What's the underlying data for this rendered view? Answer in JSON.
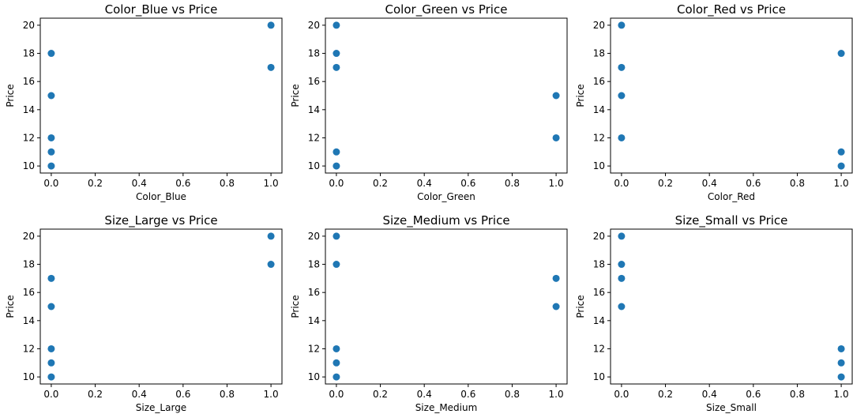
{
  "chart_data": [
    {
      "type": "scatter",
      "title": "Color_Blue vs Price",
      "xlabel": "Color_Blue",
      "ylabel": "Price",
      "xlim": [
        -0.05,
        1.05
      ],
      "ylim": [
        9.5,
        20.5
      ],
      "xticks": [
        "0.0",
        "0.2",
        "0.4",
        "0.6",
        "0.8",
        "1.0"
      ],
      "yticks": [
        "10",
        "12",
        "14",
        "16",
        "18",
        "20"
      ],
      "points": [
        {
          "x": 0,
          "y": 18
        },
        {
          "x": 0,
          "y": 15
        },
        {
          "x": 0,
          "y": 12
        },
        {
          "x": 0,
          "y": 11
        },
        {
          "x": 0,
          "y": 10
        },
        {
          "x": 1,
          "y": 20
        },
        {
          "x": 1,
          "y": 17
        }
      ],
      "color": "#1f77b4"
    },
    {
      "type": "scatter",
      "title": "Color_Green vs Price",
      "xlabel": "Color_Green",
      "ylabel": "Price",
      "xlim": [
        -0.05,
        1.05
      ],
      "ylim": [
        9.5,
        20.5
      ],
      "xticks": [
        "0.0",
        "0.2",
        "0.4",
        "0.6",
        "0.8",
        "1.0"
      ],
      "yticks": [
        "10",
        "12",
        "14",
        "16",
        "18",
        "20"
      ],
      "points": [
        {
          "x": 0,
          "y": 20
        },
        {
          "x": 0,
          "y": 18
        },
        {
          "x": 0,
          "y": 17
        },
        {
          "x": 0,
          "y": 11
        },
        {
          "x": 0,
          "y": 10
        },
        {
          "x": 1,
          "y": 15
        },
        {
          "x": 1,
          "y": 12
        }
      ],
      "color": "#1f77b4"
    },
    {
      "type": "scatter",
      "title": "Color_Red vs Price",
      "xlabel": "Color_Red",
      "ylabel": "Price",
      "xlim": [
        -0.05,
        1.05
      ],
      "ylim": [
        9.5,
        20.5
      ],
      "xticks": [
        "0.0",
        "0.2",
        "0.4",
        "0.6",
        "0.8",
        "1.0"
      ],
      "yticks": [
        "10",
        "12",
        "14",
        "16",
        "18",
        "20"
      ],
      "points": [
        {
          "x": 0,
          "y": 20
        },
        {
          "x": 0,
          "y": 17
        },
        {
          "x": 0,
          "y": 15
        },
        {
          "x": 0,
          "y": 12
        },
        {
          "x": 1,
          "y": 18
        },
        {
          "x": 1,
          "y": 11
        },
        {
          "x": 1,
          "y": 10
        }
      ],
      "color": "#1f77b4"
    },
    {
      "type": "scatter",
      "title": "Size_Large vs Price",
      "xlabel": "Size_Large",
      "ylabel": "Price",
      "xlim": [
        -0.05,
        1.05
      ],
      "ylim": [
        9.5,
        20.5
      ],
      "xticks": [
        "0.0",
        "0.2",
        "0.4",
        "0.6",
        "0.8",
        "1.0"
      ],
      "yticks": [
        "10",
        "12",
        "14",
        "16",
        "18",
        "20"
      ],
      "points": [
        {
          "x": 0,
          "y": 17
        },
        {
          "x": 0,
          "y": 15
        },
        {
          "x": 0,
          "y": 12
        },
        {
          "x": 0,
          "y": 11
        },
        {
          "x": 0,
          "y": 10
        },
        {
          "x": 1,
          "y": 20
        },
        {
          "x": 1,
          "y": 18
        }
      ],
      "color": "#1f77b4"
    },
    {
      "type": "scatter",
      "title": "Size_Medium vs Price",
      "xlabel": "Size_Medium",
      "ylabel": "Price",
      "xlim": [
        -0.05,
        1.05
      ],
      "ylim": [
        9.5,
        20.5
      ],
      "xticks": [
        "0.0",
        "0.2",
        "0.4",
        "0.6",
        "0.8",
        "1.0"
      ],
      "yticks": [
        "10",
        "12",
        "14",
        "16",
        "18",
        "20"
      ],
      "points": [
        {
          "x": 0,
          "y": 20
        },
        {
          "x": 0,
          "y": 18
        },
        {
          "x": 0,
          "y": 12
        },
        {
          "x": 0,
          "y": 11
        },
        {
          "x": 0,
          "y": 10
        },
        {
          "x": 1,
          "y": 17
        },
        {
          "x": 1,
          "y": 15
        }
      ],
      "color": "#1f77b4"
    },
    {
      "type": "scatter",
      "title": "Size_Small vs Price",
      "xlabel": "Size_Small",
      "ylabel": "Price",
      "xlim": [
        -0.05,
        1.05
      ],
      "ylim": [
        9.5,
        20.5
      ],
      "xticks": [
        "0.0",
        "0.2",
        "0.4",
        "0.6",
        "0.8",
        "1.0"
      ],
      "yticks": [
        "10",
        "12",
        "14",
        "16",
        "18",
        "20"
      ],
      "points": [
        {
          "x": 0,
          "y": 20
        },
        {
          "x": 0,
          "y": 18
        },
        {
          "x": 0,
          "y": 17
        },
        {
          "x": 0,
          "y": 15
        },
        {
          "x": 1,
          "y": 12
        },
        {
          "x": 1,
          "y": 11
        },
        {
          "x": 1,
          "y": 10
        }
      ],
      "color": "#1f77b4"
    }
  ]
}
